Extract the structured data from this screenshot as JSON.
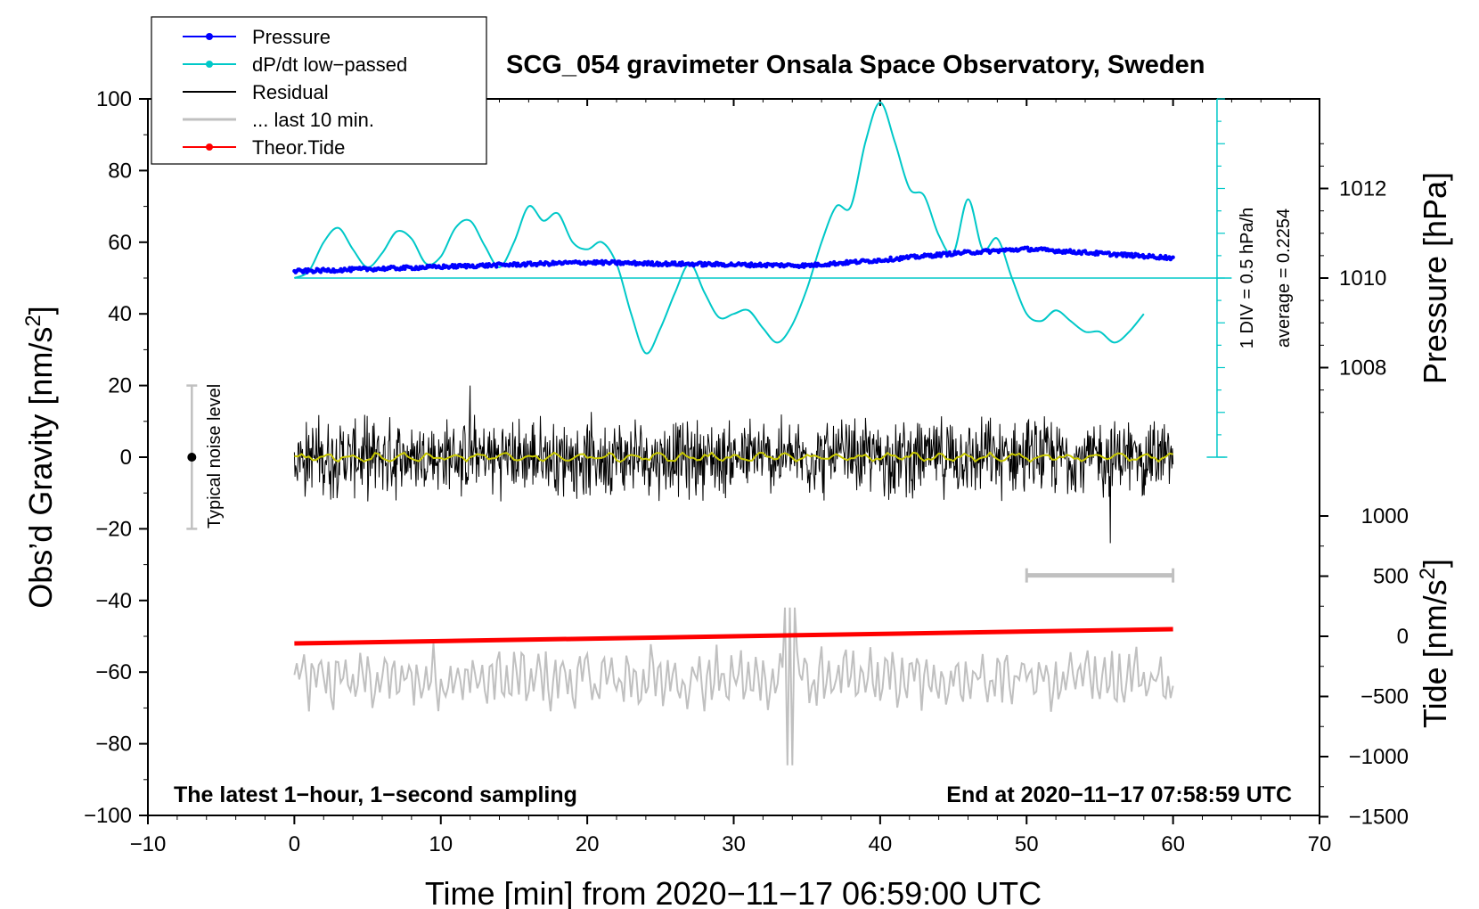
{
  "chart_data": {
    "type": "line",
    "title": "SCG_054 gravimeter Onsala Space Observatory, Sweden",
    "xlabel": "Time [min] from 2020−11−17 06:59:00 UTC",
    "ylabel_left": "Obs’d Gravity [nm/s²]",
    "ylabel_left_main": "Obs’d Gravity [nm/s",
    "ylabel_left_sup": "2",
    "ylabel_left_close": "]",
    "ylabel_right_pressure": "Pressure [hPa]",
    "ylabel_right_tide": "Tide [nm/s²]",
    "ylabel_right_tide_main": "Tide [nm/s",
    "ylabel_right_tide_sup": "2",
    "ylabel_right_tide_close": "]",
    "xlim": [
      -10,
      70
    ],
    "ylim": [
      -100,
      100
    ],
    "x_ticks": [
      "−10",
      "0",
      "10",
      "20",
      "30",
      "40",
      "50",
      "60",
      "70"
    ],
    "y_ticks": [
      "100",
      "80",
      "60",
      "40",
      "20",
      "0",
      "−20",
      "−40",
      "−60",
      "−80",
      "−100"
    ],
    "pressure_ticks": [
      "1012",
      "1010",
      "1008"
    ],
    "pressure_tick_values": [
      1012,
      1010,
      1008
    ],
    "tide_ticks": [
      "1000",
      "500",
      "0",
      "−500",
      "−1000",
      "−1500"
    ],
    "tide_tick_values": [
      1000,
      500,
      0,
      -500,
      -1000,
      -1500
    ],
    "legend": [
      {
        "label": "Pressure",
        "color": "#0000ff",
        "marker": true
      },
      {
        "label": "dP/dt low−passed",
        "color": "#00c8c8",
        "marker": true
      },
      {
        "label": "Residual",
        "color": "#000000",
        "marker": false
      },
      {
        "label": "... last 10 min.",
        "color": "#c0c0c0",
        "marker": false
      },
      {
        "label": "Theor.Tide",
        "color": "#ff0000",
        "marker": true
      }
    ],
    "annotations": {
      "bottom_left": "The latest 1−hour, 1−second sampling",
      "bottom_right": "End at 2020−11−17 07:58:59 UTC",
      "noise": "Typical noise level",
      "div_scale": "1 DIV = 0.5 hPa/h",
      "average": "average = 0.2254"
    },
    "series": [
      {
        "name": "Pressure",
        "color": "#0000ff",
        "unit": "hPa",
        "x": [
          0,
          5,
          10,
          15,
          20,
          25,
          30,
          35,
          40,
          45,
          50,
          55,
          60
        ],
        "values": [
          1010.15,
          1010.2,
          1010.25,
          1010.3,
          1010.35,
          1010.32,
          1010.3,
          1010.28,
          1010.4,
          1010.55,
          1010.65,
          1010.55,
          1010.45
        ]
      },
      {
        "name": "dP/dt low−passed",
        "color": "#00c8c8",
        "unit": "nm/s2-equivalent scale (axis left)",
        "x": [
          0,
          1,
          2,
          3,
          4,
          5,
          6,
          7,
          8,
          9,
          10,
          11,
          12,
          13,
          14,
          15,
          16,
          17,
          18,
          19,
          20,
          21,
          22,
          23,
          24,
          25,
          26,
          27,
          28,
          29,
          30,
          31,
          32,
          33,
          34,
          35,
          36,
          37,
          38,
          39,
          40,
          41,
          42,
          43,
          44,
          45,
          46,
          47,
          48,
          49,
          50,
          51,
          52,
          53,
          54,
          55,
          56,
          57,
          58
        ],
        "values": [
          50,
          52,
          60,
          64,
          58,
          53,
          57,
          63,
          61,
          54,
          56,
          64,
          66,
          59,
          53,
          60,
          70,
          66,
          68,
          60,
          58,
          60,
          54,
          40,
          29,
          36,
          46,
          54,
          46,
          39,
          40,
          41,
          36,
          32,
          37,
          47,
          60,
          70,
          70,
          88,
          99,
          88,
          75,
          73,
          62,
          57,
          72,
          58,
          61,
          50,
          40,
          38,
          41,
          38,
          35,
          35,
          32,
          35,
          40
        ]
      },
      {
        "name": "Residual",
        "color": "#000000",
        "x_range": [
          0,
          60
        ],
        "mean": 0,
        "amplitude": 10,
        "min": -24,
        "max": 20
      },
      {
        "name": "... last 10 min.",
        "color": "#c0c0c0",
        "x_range": [
          0,
          60
        ],
        "center": -62,
        "min": -86,
        "max": -42
      },
      {
        "name": "Theor.Tide",
        "color": "#ff0000",
        "unit": "nm/s2",
        "x": [
          0,
          60
        ],
        "values": [
          -52,
          -48
        ]
      }
    ],
    "noise_bar": {
      "x": -7,
      "center": 0,
      "low": -20,
      "high": 20
    },
    "time_scale_bar": {
      "x_start": 50,
      "x_end": 60,
      "y": -33
    }
  }
}
